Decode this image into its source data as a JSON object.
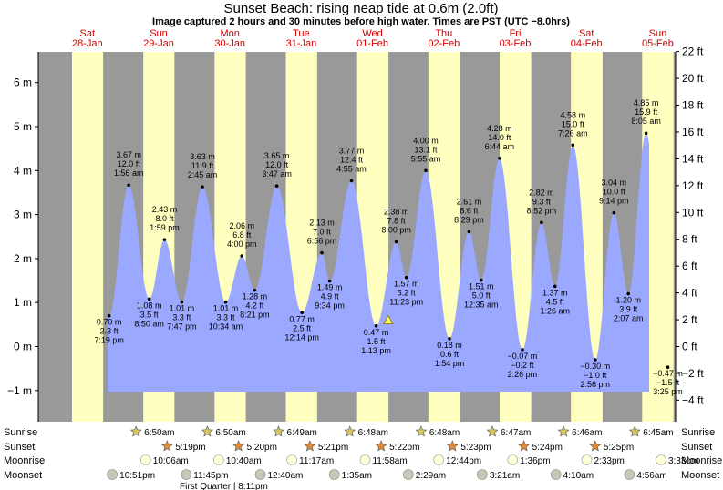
{
  "title": "Sunset Beach: rising  neap tide at 0.6m (2.0ft)",
  "subtitle": "Image captured 2 hours and 30 minutes before high water. Times are PST (UTC −8.0hrs)",
  "colors": {
    "night": "#999999",
    "day": "#ffffc0",
    "water": "#9aa8ff",
    "day_label": "#d40000"
  },
  "chart_data": {
    "type": "area",
    "title": "Sunset Beach: rising  neap tide at 0.6m (2.0ft)",
    "days": [
      {
        "dow": "Sat",
        "date": "28-Jan"
      },
      {
        "dow": "Sun",
        "date": "29-Jan"
      },
      {
        "dow": "Mon",
        "date": "30-Jan"
      },
      {
        "dow": "Tue",
        "date": "31-Jan"
      },
      {
        "dow": "Wed",
        "date": "01-Feb"
      },
      {
        "dow": "Thu",
        "date": "02-Feb"
      },
      {
        "dow": "Fri",
        "date": "03-Feb"
      },
      {
        "dow": "Sat",
        "date": "04-Feb"
      },
      {
        "dow": "Sun",
        "date": "05-Feb"
      }
    ],
    "y_left": {
      "unit": "m",
      "ylim": [
        -1.05,
        6.7
      ],
      "ticks": [
        -1,
        0,
        1,
        2,
        3,
        4,
        5,
        6
      ],
      "tick_labels": [
        "−1 m",
        "0 m",
        "1 m",
        "2 m",
        "3 m",
        "4 m",
        "5 m",
        "6 m"
      ]
    },
    "y_right": {
      "unit": "ft",
      "ticks": [
        -4,
        -2,
        0,
        2,
        4,
        6,
        8,
        10,
        12,
        14,
        16,
        18,
        20,
        22
      ],
      "tick_labels": [
        "−4 ft",
        "−2 ft",
        "0 ft",
        "2 ft",
        "4 ft",
        "6 ft",
        "8 ft",
        "10 ft",
        "12 ft",
        "14 ft",
        "16 ft",
        "18 ft",
        "20 ft",
        "22 ft"
      ]
    },
    "tides": [
      {
        "day": 0,
        "time": "7:19 pm",
        "m": 0.7,
        "ft": "2.3 ft",
        "m_label": "0.70 m"
      },
      {
        "day": 1,
        "time": "1:56 am",
        "m": 3.67,
        "ft": "12.0 ft",
        "m_label": "3.67 m"
      },
      {
        "day": 1,
        "time": "8:50 am",
        "m": 1.08,
        "ft": "3.5 ft",
        "m_label": "1.08 m"
      },
      {
        "day": 1,
        "time": "1:59 pm",
        "m": 2.43,
        "ft": "8.0 ft",
        "m_label": "2.43 m"
      },
      {
        "day": 1,
        "time": "7:47 pm",
        "m": 1.01,
        "ft": "3.3 ft",
        "m_label": "1.01 m"
      },
      {
        "day": 2,
        "time": "2:45 am",
        "m": 3.63,
        "ft": "11.9 ft",
        "m_label": "3.63 m"
      },
      {
        "day": 2,
        "time": "10:34 am",
        "m": 1.01,
        "ft": "3.3 ft",
        "m_label": "1.01 m"
      },
      {
        "day": 2,
        "time": "4:00 pm",
        "m": 2.06,
        "ft": "6.8 ft",
        "m_label": "2.06 m"
      },
      {
        "day": 2,
        "time": "8:21 pm",
        "m": 1.28,
        "ft": "4.2 ft",
        "m_label": "1.28 m"
      },
      {
        "day": 3,
        "time": "3:47 am",
        "m": 3.65,
        "ft": "12.0 ft",
        "m_label": "3.65 m"
      },
      {
        "day": 3,
        "time": "12:14 pm",
        "m": 0.77,
        "ft": "2.5 ft",
        "m_label": "0.77 m"
      },
      {
        "day": 3,
        "time": "6:56 pm",
        "m": 2.13,
        "ft": "7.0 ft",
        "m_label": "2.13 m"
      },
      {
        "day": 3,
        "time": "9:34 pm",
        "m": 1.49,
        "ft": "4.9 ft",
        "m_label": "1.49 m"
      },
      {
        "day": 4,
        "time": "4:55 am",
        "m": 3.77,
        "ft": "12.4 ft",
        "m_label": "3.77 m"
      },
      {
        "day": 4,
        "time": "1:13 pm",
        "m": 0.47,
        "ft": "1.5 ft",
        "m_label": "0.47 m"
      },
      {
        "day": 4,
        "time": "8:00 pm",
        "m": 2.38,
        "ft": "7.8 ft",
        "m_label": "2.38 m"
      },
      {
        "day": 4,
        "time": "11:23 pm",
        "m": 1.57,
        "ft": "5.2 ft",
        "m_label": "1.57 m"
      },
      {
        "day": 5,
        "time": "5:55 am",
        "m": 4.0,
        "ft": "13.1 ft",
        "m_label": "4.00 m"
      },
      {
        "day": 5,
        "time": "1:54 pm",
        "m": 0.18,
        "ft": "0.6 ft",
        "m_label": "0.18 m"
      },
      {
        "day": 5,
        "time": "8:29 pm",
        "m": 2.61,
        "ft": "8.6 ft",
        "m_label": "2.61 m"
      },
      {
        "day": 6,
        "time": "12:35 am",
        "m": 1.51,
        "ft": "5.0 ft",
        "m_label": "1.51 m"
      },
      {
        "day": 6,
        "time": "6:44 am",
        "m": 4.28,
        "ft": "14.0 ft",
        "m_label": "4.28 m"
      },
      {
        "day": 6,
        "time": "2:26 pm",
        "m": -0.07,
        "ft": "−0.2 ft",
        "m_label": "−0.07 m"
      },
      {
        "day": 6,
        "time": "8:52 pm",
        "m": 2.82,
        "ft": "9.3 ft",
        "m_label": "2.82 m"
      },
      {
        "day": 7,
        "time": "1:26 am",
        "m": 1.37,
        "ft": "4.5 ft",
        "m_label": "1.37 m"
      },
      {
        "day": 7,
        "time": "7:26 am",
        "m": 4.58,
        "ft": "15.0 ft",
        "m_label": "4.58 m"
      },
      {
        "day": 7,
        "time": "2:56 pm",
        "m": -0.3,
        "ft": "−1.0 ft",
        "m_label": "−0.30 m"
      },
      {
        "day": 7,
        "time": "9:14 pm",
        "m": 3.04,
        "ft": "10.0 ft",
        "m_label": "3.04 m"
      },
      {
        "day": 8,
        "time": "2:07 am",
        "m": 1.2,
        "ft": "3.9 ft",
        "m_label": "1.20 m"
      },
      {
        "day": 8,
        "time": "8:05 am",
        "m": 4.85,
        "ft": "15.9 ft",
        "m_label": "4.85 m"
      },
      {
        "day": 8,
        "time": "3:25 pm",
        "m": -0.47,
        "ft": "−1.5 ft",
        "m_label": "−0.47 m"
      }
    ],
    "sunrise": [
      "6:50am",
      "6:50am",
      "6:49am",
      "6:48am",
      "6:48am",
      "6:47am",
      "6:46am",
      "6:45am"
    ],
    "sunset": [
      "5:19pm",
      "5:20pm",
      "5:21pm",
      "5:22pm",
      "5:23pm",
      "5:24pm",
      "5:25pm"
    ],
    "moonrise": [
      "10:06am",
      "10:40am",
      "11:17am",
      "11:58am",
      "12:44pm",
      "1:36pm",
      "2:33pm",
      "3:33pm"
    ],
    "moonset": [
      "10:51pm",
      "11:45pm",
      "12:40am",
      "1:35am",
      "2:29am",
      "3:21am",
      "4:10am",
      "4:56am"
    ],
    "first_quarter": "First Quarter | 8:11pm"
  },
  "rows": {
    "sunrise": "Sunrise",
    "sunset": "Sunset",
    "moonrise": "Moonrise",
    "moonset": "Moonset"
  }
}
